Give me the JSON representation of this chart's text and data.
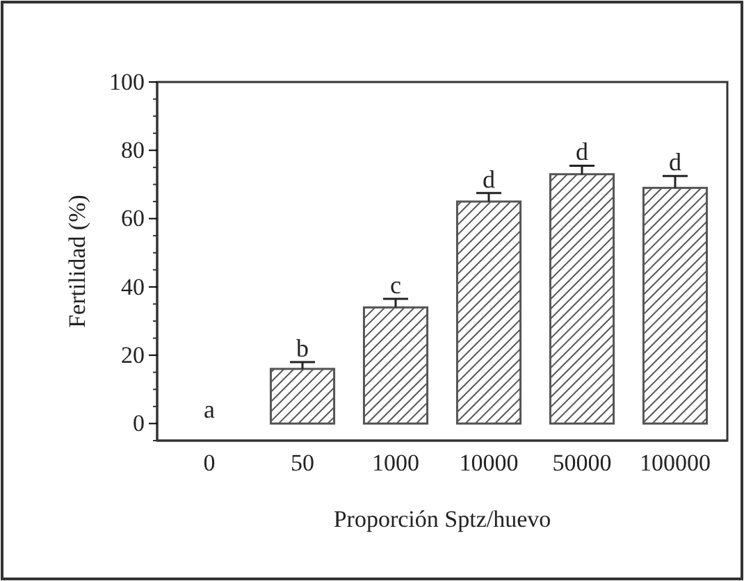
{
  "chart_data": {
    "type": "bar",
    "xlabel": "Proporción Sptz/huevo",
    "ylabel": "Fertilidad (%)",
    "categories": [
      "0",
      "50",
      "1000",
      "10000",
      "50000",
      "100000"
    ],
    "values": [
      0,
      16,
      34,
      65,
      73,
      69
    ],
    "errors": [
      null,
      2,
      2.5,
      2.5,
      2.5,
      3.5
    ],
    "color": "#555555",
    "ylim": [
      -5,
      100
    ],
    "yticks": [
      0,
      20,
      40,
      60,
      80,
      100
    ],
    "grid": false,
    "annotations": [
      {
        "text": "a",
        "x": "0",
        "y": 0
      },
      {
        "text": "b",
        "x": "50",
        "y": 18
      },
      {
        "text": "c",
        "x": "1000",
        "y": 36.5
      },
      {
        "text": "d",
        "x": "10000",
        "y": 67.5
      },
      {
        "text": "d",
        "x": "50000",
        "y": 75.5
      },
      {
        "text": "d",
        "x": "100000",
        "y": 72.5
      }
    ]
  }
}
